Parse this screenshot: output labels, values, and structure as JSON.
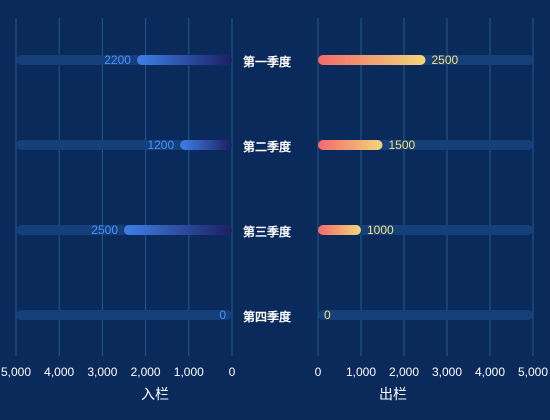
{
  "chart_data": {
    "type": "bar",
    "orientation": "horizontal-butterfly",
    "categories": [
      "第一季度",
      "第二季度",
      "第三季度",
      "第四季度"
    ],
    "series": [
      {
        "name": "入栏",
        "values": [
          2200,
          1200,
          2500,
          0
        ]
      },
      {
        "name": "出栏",
        "values": [
          2500,
          1500,
          1000,
          0
        ]
      }
    ],
    "left_axis": {
      "label": "入栏",
      "range": [
        0,
        5000
      ],
      "reversed": true,
      "ticks": [
        "5,000",
        "4,000",
        "3,000",
        "2,000",
        "1,000",
        "0"
      ]
    },
    "right_axis": {
      "label": "出栏",
      "range": [
        0,
        5000
      ],
      "ticks": [
        "0",
        "1,000",
        "2,000",
        "3,000",
        "4,000",
        "5,000"
      ]
    },
    "grid": true,
    "colors": {
      "background": "#0b2a5c",
      "track": "#143f78",
      "grid": "#1f5a86",
      "left_gradient_start": "#3f7fe6",
      "left_gradient_end": "#1c1f62",
      "left_label": "#4a90ff",
      "right_gradient_start": "#f2696a",
      "right_gradient_end": "#f3d77a",
      "right_label": "#f6e27a"
    }
  }
}
